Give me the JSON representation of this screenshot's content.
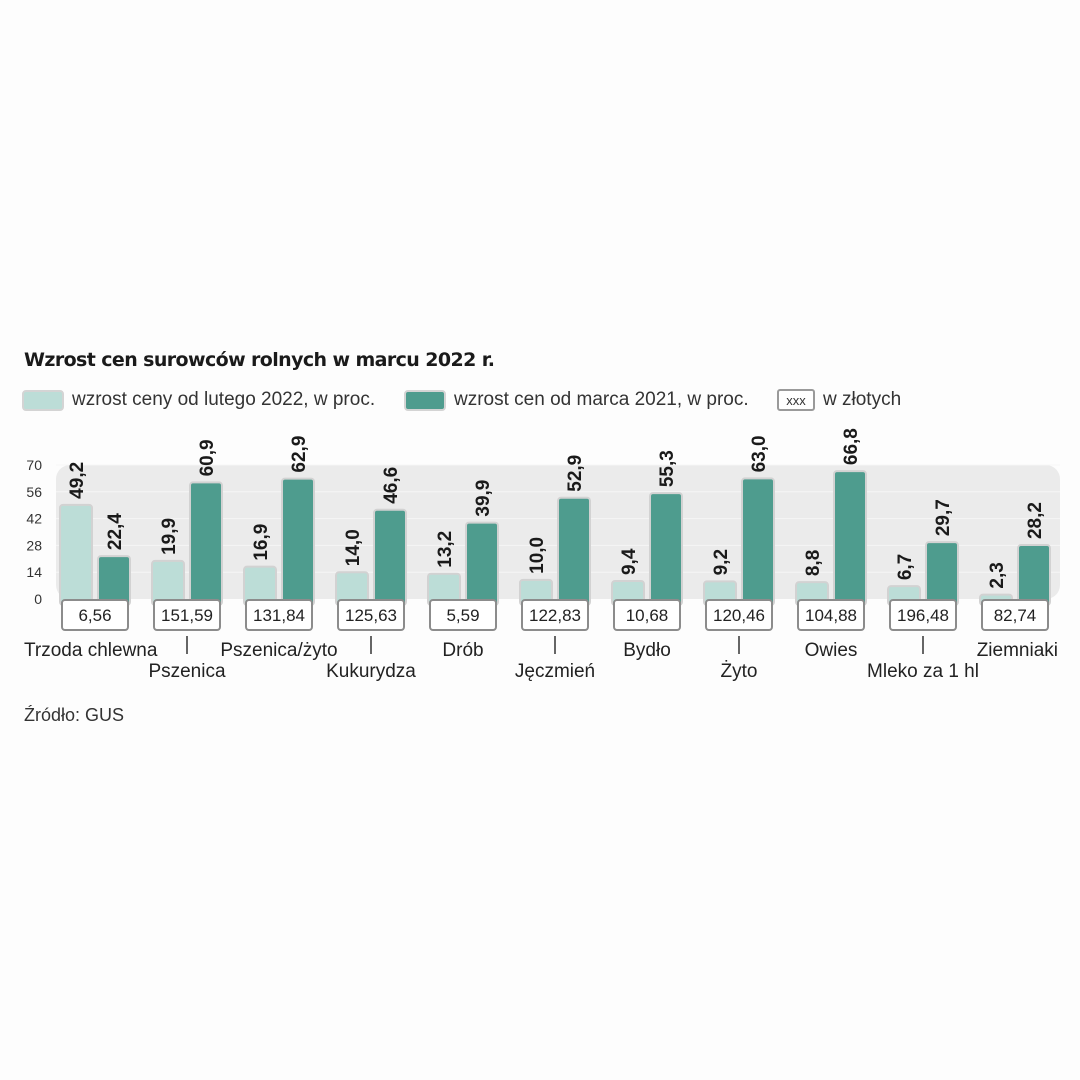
{
  "title": "Wzrost cen surowców rolnych w marcu 2022 r.",
  "legend": {
    "series1": "wzrost ceny od lutego 2022, w proc.",
    "series2": "wzrost cen od marca 2021, w proc.",
    "price_box": "xxx",
    "price_label": "w złotych"
  },
  "source": "Źródło: GUS",
  "colors": {
    "series1": "#bcddd7",
    "series2": "#4e9c8e",
    "plot_band": "#ebebeb",
    "value_label": "#1a1a1a"
  },
  "chart_data": {
    "type": "bar",
    "title": "Wzrost cen surowców rolnych w marcu 2022 r.",
    "categories": [
      "Trzoda chlewna",
      "Pszenica",
      "Pszenica/żyto",
      "Kukurydza",
      "Drób",
      "Jęczmień",
      "Bydło",
      "Żyto",
      "Owies",
      "Mleko za 1 hl",
      "Ziemniaki"
    ],
    "series": [
      {
        "name": "wzrost ceny od lutego 2022, w proc.",
        "values": [
          49.2,
          19.9,
          16.9,
          14.0,
          13.2,
          10.0,
          9.4,
          9.2,
          8.8,
          6.7,
          2.3
        ]
      },
      {
        "name": "wzrost cen od marca 2021, w proc.",
        "values": [
          22.4,
          60.9,
          62.9,
          46.6,
          39.9,
          52.9,
          55.3,
          63.0,
          66.8,
          29.7,
          28.2
        ]
      }
    ],
    "series1_labels": [
      "49,2",
      "19,9",
      "16,9",
      "14,0",
      "13,2",
      "10,0",
      "9,4",
      "9,2",
      "8,8",
      "6,7",
      "2,3"
    ],
    "series2_labels": [
      "22,4",
      "60,9",
      "62,9",
      "46,6",
      "39,9",
      "52,9",
      "55,3",
      "63,0",
      "66,8",
      "29,7",
      "28,2"
    ],
    "prices": [
      "6,56",
      "151,59",
      "131,84",
      "125,63",
      "5,59",
      "122,83",
      "10,68",
      "120,46",
      "104,88",
      "196,48",
      "82,74"
    ],
    "yticks": [
      "0",
      "14",
      "28",
      "42",
      "56",
      "70"
    ],
    "ylim": [
      0,
      70
    ],
    "grid": false,
    "legend_position": "top"
  }
}
